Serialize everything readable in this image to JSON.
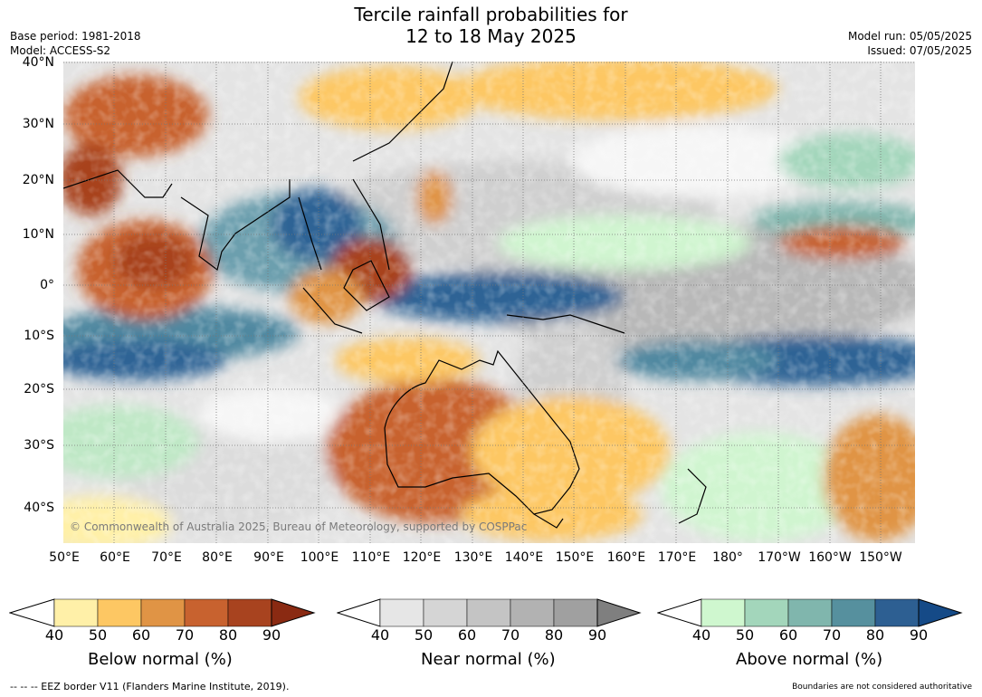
{
  "title_line1": "Tercile rainfall probabilities for",
  "title_line2": "12 to 18 May 2025",
  "base_period": "Base period: 1981-2018",
  "model": "Model: ACCESS-S2",
  "model_run": "Model run: 05/05/2025",
  "issued": "Issued: 07/05/2025",
  "copyright": "© Commonwealth of Australia 2025, Bureau of Meteorology, supported by COSPPac",
  "lat_labels": [
    "40°N",
    "30°N",
    "20°N",
    "10°N",
    "0°",
    "10°S",
    "20°S",
    "30°S",
    "40°S"
  ],
  "lon_labels": [
    "50°E",
    "60°E",
    "70°E",
    "80°E",
    "90°E",
    "100°E",
    "110°E",
    "120°E",
    "130°E",
    "140°E",
    "150°E",
    "160°E",
    "170°E",
    "180°",
    "170°W",
    "160°W",
    "150°W"
  ],
  "colorbars": [
    {
      "label": "Below normal (%)",
      "ticks": [
        "40",
        "50",
        "60",
        "70",
        "80",
        "90"
      ],
      "colors": [
        "#fff0a8",
        "#fdc763",
        "#e09445",
        "#c8622f",
        "#a8431f",
        "#8a2a12"
      ]
    },
    {
      "label": "Near normal (%)",
      "ticks": [
        "40",
        "50",
        "60",
        "70",
        "80",
        "90"
      ],
      "colors": [
        "#e6e6e6",
        "#d5d5d5",
        "#c4c4c4",
        "#b2b2b2",
        "#a0a0a0",
        "#7f7f7f"
      ]
    },
    {
      "label": "Above normal (%)",
      "ticks": [
        "40",
        "50",
        "60",
        "70",
        "80",
        "90"
      ],
      "colors": [
        "#cff7cf",
        "#a3d6bb",
        "#80b6ad",
        "#56909e",
        "#2d5f92",
        "#154a87"
      ]
    }
  ],
  "footer_left": "--  --  -- EEZ border V11 (Flanders Marine Institute, 2019).",
  "footer_right": "Boundaries are not considered authoritative"
}
